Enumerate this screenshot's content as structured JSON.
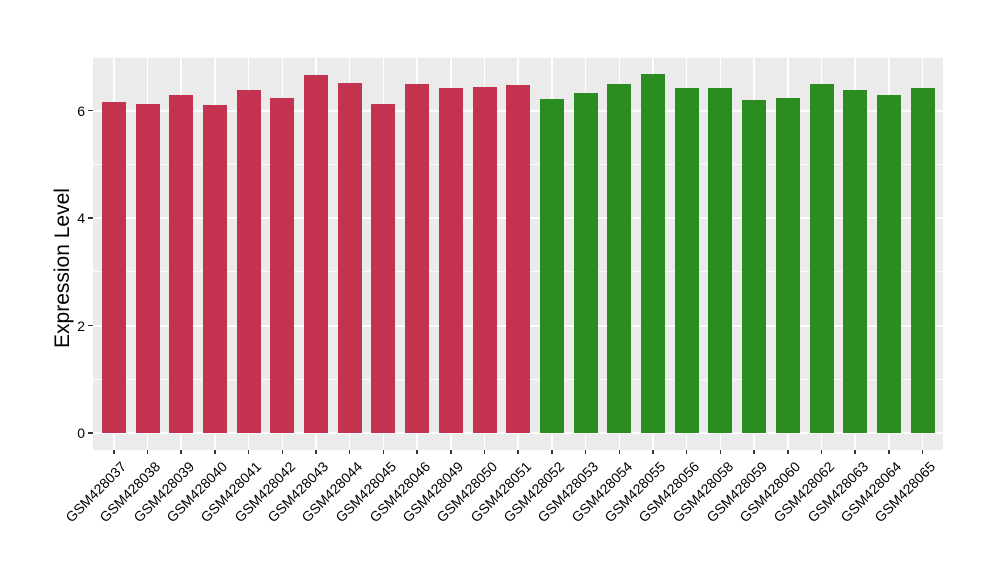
{
  "chart_data": {
    "type": "bar",
    "title": "",
    "xlabel": "",
    "ylabel": "Expression Level",
    "categories": [
      "GSM428037",
      "GSM428038",
      "GSM428039",
      "GSM428040",
      "GSM428041",
      "GSM428042",
      "GSM428043",
      "GSM428044",
      "GSM428045",
      "GSM428046",
      "GSM428049",
      "GSM428050",
      "GSM428051",
      "GSM428052",
      "GSM428053",
      "GSM428054",
      "GSM428055",
      "GSM428056",
      "GSM428058",
      "GSM428059",
      "GSM428060",
      "GSM428062",
      "GSM428063",
      "GSM428064",
      "GSM428065"
    ],
    "values": [
      6.16,
      6.13,
      6.29,
      6.11,
      6.39,
      6.24,
      6.66,
      6.51,
      6.12,
      6.49,
      6.42,
      6.45,
      6.48,
      6.21,
      6.33,
      6.5,
      6.68,
      6.42,
      6.42,
      6.2,
      6.24,
      6.49,
      6.39,
      6.29,
      6.43
    ],
    "groups": [
      "crimson",
      "crimson",
      "crimson",
      "crimson",
      "crimson",
      "crimson",
      "crimson",
      "crimson",
      "crimson",
      "crimson",
      "crimson",
      "crimson",
      "crimson",
      "green",
      "green",
      "green",
      "green",
      "green",
      "green",
      "green",
      "green",
      "green",
      "green",
      "green",
      "green"
    ],
    "group_colors": {
      "crimson": "#C3324E",
      "green": "#2B8C22"
    },
    "ytick_labels": [
      "0",
      "2",
      "4",
      "6"
    ],
    "ytick_values": [
      0,
      2,
      4,
      6
    ],
    "gridline_values": [
      0,
      1,
      2,
      3,
      4,
      5,
      6,
      7
    ],
    "ylim": [
      -0.32,
      7.0
    ],
    "grid": "on",
    "legend": "none",
    "panel_bg": "#EBEBEB",
    "grid_color": "#FFFFFF"
  }
}
